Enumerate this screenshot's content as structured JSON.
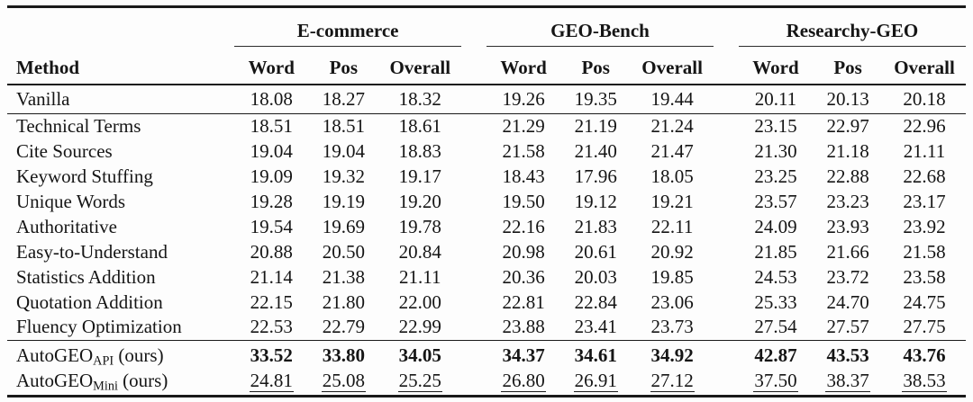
{
  "table": {
    "method_header": "Method",
    "col_groups": [
      {
        "label": "E-commerce"
      },
      {
        "label": "GEO-Bench"
      },
      {
        "label": "Researchy-GEO"
      }
    ],
    "sub_columns": [
      "Word",
      "Pos",
      "Overall"
    ],
    "sections": [
      {
        "name": "baseline",
        "rows": [
          {
            "method": "Vanilla",
            "emphasis": "none",
            "values": [
              "18.08",
              "18.27",
              "18.32",
              "19.26",
              "19.35",
              "19.44",
              "20.11",
              "20.13",
              "20.18"
            ]
          }
        ]
      },
      {
        "name": "heuristic-methods",
        "rows": [
          {
            "method": "Technical Terms",
            "emphasis": "none",
            "values": [
              "18.51",
              "18.51",
              "18.61",
              "21.29",
              "21.19",
              "21.24",
              "23.15",
              "22.97",
              "22.96"
            ]
          },
          {
            "method": "Cite Sources",
            "emphasis": "none",
            "values": [
              "19.04",
              "19.04",
              "18.83",
              "21.58",
              "21.40",
              "21.47",
              "21.30",
              "21.18",
              "21.11"
            ]
          },
          {
            "method": "Keyword Stuffing",
            "emphasis": "none",
            "values": [
              "19.09",
              "19.32",
              "19.17",
              "18.43",
              "17.96",
              "18.05",
              "23.25",
              "22.88",
              "22.68"
            ]
          },
          {
            "method": "Unique Words",
            "emphasis": "none",
            "values": [
              "19.28",
              "19.19",
              "19.20",
              "19.50",
              "19.12",
              "19.21",
              "23.57",
              "23.23",
              "23.17"
            ]
          },
          {
            "method": "Authoritative",
            "emphasis": "none",
            "values": [
              "19.54",
              "19.69",
              "19.78",
              "22.16",
              "21.83",
              "22.11",
              "24.09",
              "23.93",
              "23.92"
            ]
          },
          {
            "method": "Easy-to-Understand",
            "emphasis": "none",
            "values": [
              "20.88",
              "20.50",
              "20.84",
              "20.98",
              "20.61",
              "20.92",
              "21.85",
              "21.66",
              "21.58"
            ]
          },
          {
            "method": "Statistics Addition",
            "emphasis": "none",
            "values": [
              "21.14",
              "21.38",
              "21.11",
              "20.36",
              "20.03",
              "19.85",
              "24.53",
              "23.72",
              "23.58"
            ]
          },
          {
            "method": "Quotation Addition",
            "emphasis": "none",
            "values": [
              "22.15",
              "21.80",
              "22.00",
              "22.81",
              "22.84",
              "23.06",
              "25.33",
              "24.70",
              "24.75"
            ]
          },
          {
            "method": "Fluency Optimization",
            "emphasis": "none",
            "values": [
              "22.53",
              "22.79",
              "22.99",
              "23.88",
              "23.41",
              "23.73",
              "27.54",
              "27.57",
              "27.75"
            ]
          }
        ]
      },
      {
        "name": "ours",
        "rows": [
          {
            "method": "AutoGEO",
            "method_sub": "API",
            "method_suffix": " (ours)",
            "emphasis": "bold",
            "values": [
              "33.52",
              "33.80",
              "34.05",
              "34.37",
              "34.61",
              "34.92",
              "42.87",
              "43.53",
              "43.76"
            ]
          },
          {
            "method": "AutoGEO",
            "method_sub": "Mini",
            "method_suffix": " (ours)",
            "emphasis": "underline",
            "values": [
              "24.81",
              "25.08",
              "25.25",
              "26.80",
              "26.91",
              "27.12",
              "37.50",
              "38.37",
              "38.53"
            ]
          }
        ]
      }
    ]
  }
}
